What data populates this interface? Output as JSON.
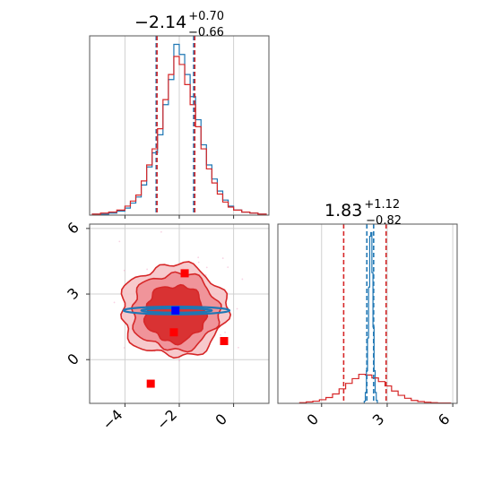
{
  "chart_data": [
    {
      "type": "step-histogram",
      "panel": "marginal-param-1",
      "title": {
        "main": "−2.14",
        "sup": "+0.70",
        "sub": "−0.66"
      },
      "xlim": [
        -5.3,
        1.3
      ],
      "grid": true,
      "series": [
        {
          "name": "",
          "color": "#1f77b4",
          "bin_edges": [
            -5.2,
            -4.9,
            -4.6,
            -4.3,
            -4.0,
            -3.8,
            -3.6,
            -3.4,
            -3.2,
            -3.0,
            -2.8,
            -2.6,
            -2.4,
            -2.2,
            -2.0,
            -1.8,
            -1.6,
            -1.4,
            -1.2,
            -1.0,
            -0.8,
            -0.6,
            -0.4,
            -0.2,
            0.0,
            0.3,
            0.6,
            0.9,
            1.2
          ],
          "counts": [
            1,
            1,
            2,
            4,
            7,
            12,
            18,
            30,
            48,
            62,
            80,
            110,
            135,
            170,
            160,
            140,
            118,
            95,
            70,
            50,
            36,
            24,
            15,
            9,
            5,
            3,
            2,
            1
          ]
        },
        {
          "name": "",
          "color": "#d62728",
          "bin_edges": [
            -5.2,
            -4.9,
            -4.6,
            -4.3,
            -4.0,
            -3.8,
            -3.6,
            -3.4,
            -3.2,
            -3.0,
            -2.8,
            -2.6,
            -2.4,
            -2.2,
            -2.0,
            -1.8,
            -1.6,
            -1.4,
            -1.2,
            -1.0,
            -0.8,
            -0.6,
            -0.4,
            -0.2,
            0.0,
            0.3,
            0.6,
            0.9,
            1.2
          ],
          "counts": [
            1,
            2,
            3,
            5,
            9,
            14,
            20,
            34,
            50,
            66,
            86,
            115,
            140,
            158,
            150,
            130,
            110,
            88,
            66,
            46,
            32,
            21,
            13,
            8,
            5,
            3,
            2,
            1
          ]
        }
      ],
      "quantile_lines": {
        "#1f77b4": [
          -2.85,
          -1.47
        ],
        "#d62728": [
          -2.82,
          -1.43
        ]
      }
    },
    {
      "type": "contour-scatter",
      "panel": "joint",
      "xlim": [
        -5.3,
        1.3
      ],
      "ylim": [
        -2.0,
        6.2
      ],
      "x_ticks": [
        -4,
        -2,
        0
      ],
      "x_tick_labels": [
        "−4",
        "−2",
        "0"
      ],
      "y_ticks": [
        0,
        3,
        6
      ],
      "y_tick_labels": [
        "0",
        "3",
        "6"
      ],
      "grid": true,
      "contours": [
        {
          "color": "#d62728",
          "fill": "#f6c3c6",
          "center": [
            -2.2,
            2.25
          ],
          "radii": [
            1.95,
            2.1
          ]
        },
        {
          "color": "#d62728",
          "fill": "#ee8e95",
          "center": [
            -2.15,
            2.2
          ],
          "radii": [
            1.6,
            1.75
          ]
        },
        {
          "color": "#d62728",
          "fill": "#d62728",
          "center": [
            -2.15,
            2.1
          ],
          "radii": [
            1.1,
            1.3
          ]
        },
        {
          "color": "#1f77b4",
          "fill": "none",
          "center": [
            -2.1,
            2.25
          ],
          "radii": [
            1.95,
            0.18
          ]
        },
        {
          "color": "#1f77b4",
          "fill": "none",
          "center": [
            -2.1,
            2.25
          ],
          "radii": [
            1.3,
            0.1
          ]
        }
      ],
      "markers": [
        {
          "x": -2.14,
          "y": 2.25,
          "color": "#0000ff"
        },
        {
          "x": -1.8,
          "y": 3.95,
          "color": "#ff0000"
        },
        {
          "x": -2.2,
          "y": 1.25,
          "color": "#ff0000"
        },
        {
          "x": -0.35,
          "y": 0.85,
          "color": "#ff0000"
        },
        {
          "x": -3.05,
          "y": -1.1,
          "color": "#ff0000"
        }
      ]
    },
    {
      "type": "step-histogram",
      "panel": "marginal-param-2",
      "title": {
        "main": "1.83",
        "sup": "+1.12",
        "sub": "−0.82"
      },
      "xlim": [
        -2.0,
        6.2
      ],
      "x_ticks": [
        0,
        3,
        6
      ],
      "x_tick_labels": [
        "0",
        "3",
        "6"
      ],
      "grid": true,
      "series": [
        {
          "name": "",
          "color": "#1f77b4",
          "bin_edges": [
            1.95,
            2.0,
            2.05,
            2.1,
            2.15,
            2.2,
            2.25,
            2.3,
            2.35,
            2.4,
            2.45,
            2.5,
            2.55
          ],
          "counts": [
            6,
            30,
            90,
            180,
            320,
            460,
            470,
            360,
            210,
            90,
            30,
            8
          ]
        },
        {
          "name": "",
          "color": "#d62728",
          "bin_edges": [
            -1.0,
            -0.7,
            -0.4,
            -0.1,
            0.2,
            0.5,
            0.8,
            1.1,
            1.4,
            1.7,
            2.0,
            2.3,
            2.6,
            2.9,
            3.2,
            3.5,
            3.8,
            4.1,
            4.4,
            4.7,
            5.0,
            5.3,
            5.6,
            5.9
          ],
          "counts": [
            2,
            4,
            6,
            10,
            16,
            26,
            40,
            55,
            68,
            80,
            78,
            70,
            60,
            48,
            34,
            22,
            14,
            8,
            5,
            3,
            2,
            1,
            1
          ]
        }
      ],
      "quantile_lines": {
        "#1f77b4": [
          2.07,
          2.38
        ],
        "#d62728": [
          1.01,
          2.95
        ]
      }
    }
  ]
}
